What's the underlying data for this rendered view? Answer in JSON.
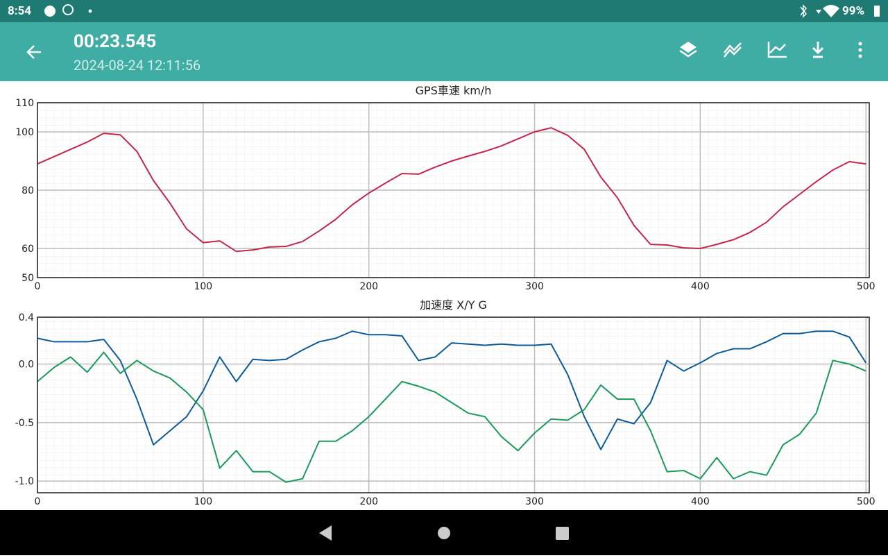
{
  "status_bar": {
    "time": "8:54",
    "battery": "99%"
  },
  "app_bar": {
    "title": "00:23.545",
    "subtitle": "2024-08-24 12:11:56"
  },
  "chart_data": [
    {
      "type": "line",
      "title": "GPS車速 km/h",
      "x": [
        0,
        10,
        20,
        30,
        40,
        50,
        60,
        70,
        80,
        90,
        100,
        110,
        120,
        130,
        140,
        150,
        160,
        170,
        180,
        190,
        200,
        210,
        220,
        230,
        240,
        250,
        260,
        270,
        280,
        290,
        300,
        310,
        320,
        330,
        340,
        350,
        360,
        370,
        380,
        390,
        400,
        410,
        420,
        430,
        440,
        450,
        460,
        470,
        480,
        490,
        500
      ],
      "xlim": [
        0,
        502
      ],
      "xticks": [
        0,
        100,
        200,
        300,
        400,
        500
      ],
      "ylim": [
        50,
        110
      ],
      "yticks": [
        50,
        60,
        80,
        100,
        110
      ],
      "grid": true,
      "series": [
        {
          "color": "#c2274a",
          "values": [
            89,
            91.5,
            94,
            96.5,
            99.5,
            99,
            93.3,
            83.3,
            75.5,
            66.7,
            62,
            62.6,
            59,
            59.5,
            60.5,
            60.7,
            62.4,
            66,
            70,
            75,
            79,
            82.4,
            85.7,
            85.5,
            87.9,
            90,
            91.7,
            93.3,
            95.2,
            97.6,
            100,
            101.4,
            98.8,
            94,
            84.5,
            77.4,
            67.9,
            61.4,
            61.2,
            60.2,
            60,
            61.4,
            63,
            65.5,
            69,
            74.3,
            78.6,
            82.9,
            86.9,
            89.8,
            89
          ]
        }
      ]
    },
    {
      "type": "line",
      "title": "加速度 X/Y G",
      "x": [
        0,
        10,
        20,
        30,
        40,
        50,
        60,
        70,
        80,
        90,
        100,
        110,
        120,
        130,
        140,
        150,
        160,
        170,
        180,
        190,
        200,
        210,
        220,
        230,
        240,
        250,
        260,
        270,
        280,
        290,
        300,
        310,
        320,
        330,
        340,
        350,
        360,
        370,
        380,
        390,
        400,
        410,
        420,
        430,
        440,
        450,
        460,
        470,
        480,
        490,
        500
      ],
      "xlim": [
        0,
        502
      ],
      "xticks": [
        0,
        100,
        200,
        300,
        400,
        500
      ],
      "ylim": [
        -1.1,
        0.4
      ],
      "yticks": [
        {
          "value": -1,
          "label": "-1.0"
        },
        -0.5,
        {
          "value": 0,
          "label": "0.0"
        },
        0.4
      ],
      "grid": true,
      "series": [
        {
          "color": "#0c5a9a",
          "values": [
            0.22,
            0.19,
            0.19,
            0.19,
            0.21,
            0.03,
            -0.3,
            -0.69,
            -0.57,
            -0.45,
            -0.23,
            0.06,
            -0.15,
            0.04,
            0.03,
            0.04,
            0.12,
            0.19,
            0.22,
            0.28,
            0.25,
            0.25,
            0.24,
            0.03,
            0.06,
            0.18,
            0.17,
            0.16,
            0.17,
            0.16,
            0.16,
            0.17,
            -0.09,
            -0.45,
            -0.73,
            -0.47,
            -0.51,
            -0.33,
            0.03,
            -0.06,
            0.01,
            0.09,
            0.13,
            0.13,
            0.19,
            0.26,
            0.26,
            0.28,
            0.28,
            0.23,
            0.01
          ]
        },
        {
          "color": "#1a9a5a",
          "values": [
            -0.15,
            -0.03,
            0.06,
            -0.07,
            0.1,
            -0.08,
            0.03,
            -0.06,
            -0.12,
            -0.24,
            -0.39,
            -0.89,
            -0.74,
            -0.92,
            -0.92,
            -1.01,
            -0.98,
            -0.66,
            -0.66,
            -0.57,
            -0.45,
            -0.3,
            -0.15,
            -0.19,
            -0.24,
            -0.33,
            -0.42,
            -0.45,
            -0.62,
            -0.74,
            -0.59,
            -0.47,
            -0.48,
            -0.39,
            -0.18,
            -0.3,
            -0.3,
            -0.57,
            -0.92,
            -0.91,
            -0.98,
            -0.8,
            -0.98,
            -0.92,
            -0.95,
            -0.69,
            -0.6,
            -0.42,
            0.03,
            0,
            -0.06
          ]
        }
      ]
    }
  ]
}
